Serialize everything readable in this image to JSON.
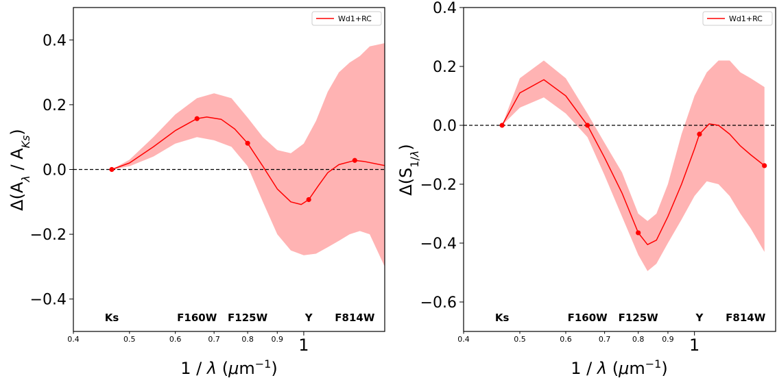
{
  "chart_data": [
    {
      "type": "line",
      "ylabel": "Δ(A_λ / A_Ks)",
      "xlabel": "1 / λ (μm⁻¹)",
      "x_scale": "log",
      "xlim": [
        0.4,
        1.38
      ],
      "ylim": [
        -0.5,
        0.5
      ],
      "xticks": [
        {
          "v": 0.4,
          "label": "0.4"
        },
        {
          "v": 0.5,
          "label": "0.5"
        },
        {
          "v": 0.6,
          "label": "0.6"
        },
        {
          "v": 0.7,
          "label": "0.7"
        },
        {
          "v": 0.8,
          "label": "0.8"
        },
        {
          "v": 0.9,
          "label": "0.9"
        },
        {
          "v": 1.0,
          "label": "1"
        }
      ],
      "yticks": [
        {
          "v": 0.4,
          "label": "0.4"
        },
        {
          "v": 0.2,
          "label": "0.2"
        },
        {
          "v": 0.0,
          "label": "0.0"
        },
        {
          "v": -0.2,
          "label": "−0.2"
        },
        {
          "v": -0.4,
          "label": "−0.4"
        }
      ],
      "legend": {
        "entries": [
          "Wd1+RC"
        ],
        "position": "top-right"
      },
      "reference_line": {
        "y": 0,
        "style": "dashed"
      },
      "band_labels": [
        {
          "x": 0.466,
          "label": "Ks"
        },
        {
          "x": 0.654,
          "label": "F160W"
        },
        {
          "x": 0.8,
          "label": "F125W"
        },
        {
          "x": 1.02,
          "label": "Y"
        },
        {
          "x": 1.225,
          "label": "F814W"
        }
      ],
      "color": "#ff0000",
      "band_color": "#ffb3b3",
      "series": [
        {
          "name": "Wd1+RC",
          "points": {
            "x": [
              0.466,
              0.654,
              0.8,
              1.02,
              1.225
            ],
            "y": [
              0.0,
              0.157,
              0.081,
              -0.093,
              0.028
            ]
          },
          "curve": {
            "x": [
              0.466,
              0.5,
              0.55,
              0.6,
              0.654,
              0.68,
              0.72,
              0.76,
              0.8,
              0.85,
              0.9,
              0.95,
              0.99,
              1.02,
              1.06,
              1.1,
              1.15,
              1.225,
              1.27,
              1.38
            ],
            "y": [
              0.0,
              0.02,
              0.07,
              0.12,
              0.157,
              0.162,
              0.155,
              0.125,
              0.081,
              0.01,
              -0.06,
              -0.1,
              -0.108,
              -0.093,
              -0.05,
              -0.01,
              0.015,
              0.028,
              0.025,
              0.012
            ]
          },
          "band": {
            "x": [
              0.466,
              0.5,
              0.55,
              0.6,
              0.654,
              0.7,
              0.75,
              0.8,
              0.85,
              0.9,
              0.95,
              1.0,
              1.05,
              1.1,
              1.15,
              1.2,
              1.25,
              1.3,
              1.38
            ],
            "upper": [
              0.0,
              0.03,
              0.1,
              0.17,
              0.22,
              0.235,
              0.22,
              0.16,
              0.1,
              0.06,
              0.05,
              0.08,
              0.15,
              0.24,
              0.3,
              0.33,
              0.35,
              0.38,
              0.39
            ],
            "lower": [
              0.0,
              0.01,
              0.04,
              0.08,
              0.1,
              0.09,
              0.07,
              0.01,
              -0.1,
              -0.2,
              -0.25,
              -0.265,
              -0.26,
              -0.24,
              -0.22,
              -0.2,
              -0.19,
              -0.2,
              -0.3
            ]
          }
        }
      ]
    },
    {
      "type": "line",
      "ylabel": "Δ(S_1/λ)",
      "xlabel": "1 / λ (μm⁻¹)",
      "x_scale": "log",
      "xlim": [
        0.4,
        1.38
      ],
      "ylim": [
        -0.7,
        0.4
      ],
      "xticks": [
        {
          "v": 0.4,
          "label": "0.4"
        },
        {
          "v": 0.5,
          "label": "0.5"
        },
        {
          "v": 0.6,
          "label": "0.6"
        },
        {
          "v": 0.7,
          "label": "0.7"
        },
        {
          "v": 0.8,
          "label": "0.8"
        },
        {
          "v": 0.9,
          "label": "0.9"
        },
        {
          "v": 1.0,
          "label": "1"
        }
      ],
      "yticks": [
        {
          "v": 0.4,
          "label": "0.4"
        },
        {
          "v": 0.2,
          "label": "0.2"
        },
        {
          "v": 0.0,
          "label": "0.0"
        },
        {
          "v": -0.2,
          "label": "−0.2"
        },
        {
          "v": -0.4,
          "label": "−0.4"
        },
        {
          "v": -0.6,
          "label": "−0.6"
        }
      ],
      "legend": {
        "entries": [
          "Wd1+RC"
        ],
        "position": "top-right"
      },
      "reference_line": {
        "y": 0,
        "style": "dashed"
      },
      "band_labels": [
        {
          "x": 0.466,
          "label": "Ks"
        },
        {
          "x": 0.654,
          "label": "F160W"
        },
        {
          "x": 0.8,
          "label": "F125W"
        },
        {
          "x": 1.02,
          "label": "Y"
        },
        {
          "x": 1.225,
          "label": "F814W"
        }
      ],
      "color": "#ff0000",
      "band_color": "#ffb3b3",
      "series": [
        {
          "name": "Wd1+RC",
          "points": {
            "x": [
              0.466,
              0.654,
              0.8,
              1.02,
              1.32
            ],
            "y": [
              0.0,
              0.0,
              -0.365,
              -0.03,
              -0.137
            ]
          },
          "curve": {
            "x": [
              0.466,
              0.5,
              0.55,
              0.6,
              0.654,
              0.7,
              0.75,
              0.8,
              0.83,
              0.86,
              0.9,
              0.95,
              1.0,
              1.02,
              1.06,
              1.1,
              1.15,
              1.2,
              1.25,
              1.32
            ],
            "y": [
              0.0,
              0.11,
              0.155,
              0.1,
              0.0,
              -0.11,
              -0.23,
              -0.365,
              -0.405,
              -0.39,
              -0.31,
              -0.2,
              -0.08,
              -0.03,
              0.005,
              0.0,
              -0.03,
              -0.07,
              -0.1,
              -0.137
            ]
          },
          "band": {
            "x": [
              0.466,
              0.5,
              0.55,
              0.6,
              0.654,
              0.7,
              0.75,
              0.8,
              0.83,
              0.86,
              0.9,
              0.95,
              1.0,
              1.05,
              1.1,
              1.15,
              1.2,
              1.25,
              1.32
            ],
            "upper": [
              0.0,
              0.16,
              0.22,
              0.16,
              0.04,
              -0.06,
              -0.16,
              -0.3,
              -0.325,
              -0.3,
              -0.2,
              -0.03,
              0.1,
              0.18,
              0.22,
              0.22,
              0.18,
              0.16,
              0.13
            ],
            "lower": [
              0.0,
              0.06,
              0.095,
              0.04,
              -0.04,
              -0.17,
              -0.31,
              -0.44,
              -0.495,
              -0.47,
              -0.4,
              -0.32,
              -0.24,
              -0.19,
              -0.2,
              -0.24,
              -0.3,
              -0.35,
              -0.43
            ]
          }
        }
      ]
    }
  ]
}
